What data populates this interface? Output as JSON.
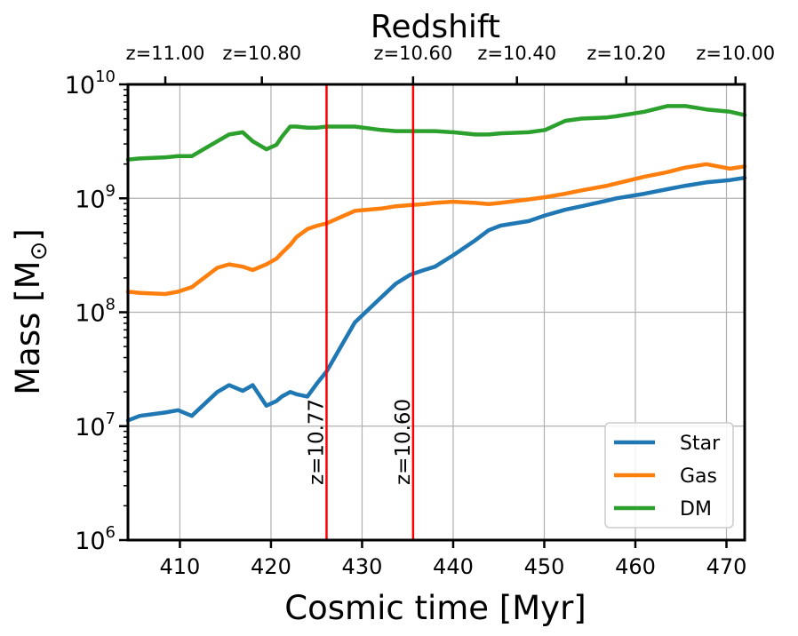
{
  "chart_data": {
    "type": "line",
    "top_axis_title": "Redshift",
    "xlabel": "Cosmic time [Myr]",
    "ylabel_main": "Mass [M",
    "ylabel_sub": "⊙",
    "ylabel_close": "]",
    "xlim": [
      404.3,
      472
    ],
    "ylim_log10": [
      6,
      10
    ],
    "scale_y": "log",
    "x_ticks": [
      410,
      420,
      430,
      440,
      450,
      460,
      470
    ],
    "x_tick_labels": [
      "410",
      "420",
      "430",
      "440",
      "450",
      "460",
      "470"
    ],
    "y_ticks_log10": [
      6,
      7,
      8,
      9,
      10
    ],
    "y_tick_base": "10",
    "y_tick_exponents": [
      "6",
      "7",
      "8",
      "9",
      "10"
    ],
    "top_ticks": [
      {
        "label": "z=11.00",
        "time": 408.4
      },
      {
        "label": "z=10.80",
        "time": 419.0
      },
      {
        "label": "z=10.60",
        "time": 435.6
      },
      {
        "label": "z=10.40",
        "time": 447.0
      },
      {
        "label": "z=10.20",
        "time": 459.0
      },
      {
        "label": "z=10.00",
        "time": 471.0
      }
    ],
    "grid": true,
    "legend_position": "bottom-right",
    "vlines": [
      {
        "time": 426.1,
        "label": "z=10.77",
        "color": "#ff0000"
      },
      {
        "time": 435.6,
        "label": "z=10.60",
        "color": "#ff0000"
      }
    ],
    "x": [
      404.3,
      405.6,
      408.4,
      409.8,
      411.3,
      414.1,
      415.4,
      416.9,
      418.0,
      419.5,
      420.6,
      421.2,
      422.1,
      422.8,
      424.0,
      425.1,
      426.1,
      429.2,
      432.1,
      433.7,
      435.3,
      436.8,
      438.0,
      440.0,
      442.4,
      443.9,
      445.2,
      448.3,
      450.1,
      452.3,
      454.1,
      456.9,
      457.9,
      461.0,
      463.5,
      465.5,
      467.8,
      470.4,
      472.0
    ],
    "series": [
      {
        "name": "Star",
        "color": "#1f77b4",
        "values": [
          7.05,
          7.09,
          7.12,
          7.14,
          7.09,
          7.3,
          7.36,
          7.31,
          7.36,
          7.18,
          7.22,
          7.26,
          7.3,
          7.28,
          7.26,
          7.38,
          7.48,
          7.91,
          8.13,
          8.25,
          8.33,
          8.37,
          8.4,
          8.5,
          8.63,
          8.72,
          8.76,
          8.8,
          8.85,
          8.9,
          8.93,
          8.98,
          9.0,
          9.04,
          9.08,
          9.11,
          9.14,
          9.16,
          9.18
        ]
      },
      {
        "name": "Gas",
        "color": "#ff7f0e",
        "values": [
          8.18,
          8.17,
          8.16,
          8.18,
          8.22,
          8.39,
          8.42,
          8.4,
          8.37,
          8.42,
          8.47,
          8.52,
          8.59,
          8.66,
          8.73,
          8.76,
          8.78,
          8.89,
          8.91,
          8.93,
          8.94,
          8.95,
          8.96,
          8.97,
          8.96,
          8.95,
          8.96,
          8.99,
          9.01,
          9.04,
          9.07,
          9.11,
          9.13,
          9.19,
          9.23,
          9.27,
          9.3,
          9.26,
          9.28
        ]
      },
      {
        "name": "DM",
        "color": "#2ca02c",
        "values": [
          9.34,
          9.35,
          9.36,
          9.37,
          9.37,
          9.5,
          9.56,
          9.58,
          9.5,
          9.43,
          9.47,
          9.54,
          9.63,
          9.63,
          9.62,
          9.62,
          9.63,
          9.63,
          9.6,
          9.59,
          9.59,
          9.59,
          9.59,
          9.58,
          9.56,
          9.56,
          9.57,
          9.58,
          9.6,
          9.68,
          9.7,
          9.71,
          9.72,
          9.76,
          9.81,
          9.81,
          9.78,
          9.76,
          9.73
        ]
      }
    ]
  }
}
